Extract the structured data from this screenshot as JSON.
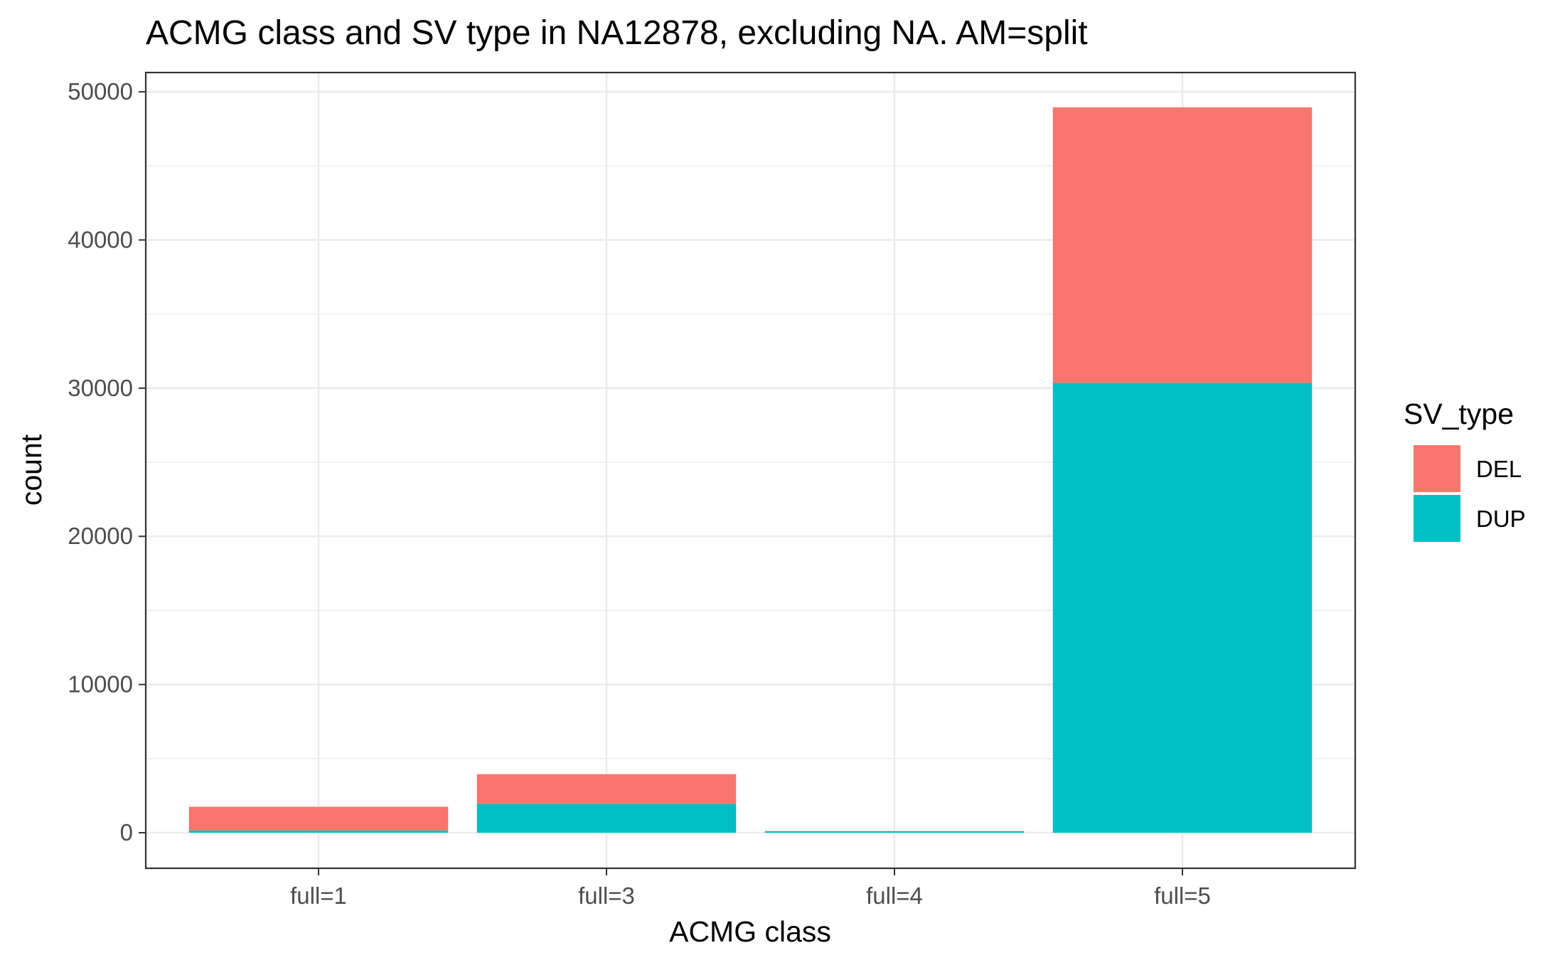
{
  "chart_data": {
    "type": "bar",
    "stacked": true,
    "title": "ACMG class and SV type in NA12878, excluding NA. AM=split",
    "xlabel": "ACMG class",
    "ylabel": "count",
    "categories": [
      "full=1",
      "full=3",
      "full=4",
      "full=5"
    ],
    "series": [
      {
        "name": "DEL",
        "color": "#F8766D",
        "values": [
          1600,
          2000,
          10,
          18600
        ]
      },
      {
        "name": "DUP",
        "color": "#00BFC4",
        "values": [
          150,
          1950,
          100,
          30350
        ]
      }
    ],
    "ylim": [
      -2400,
      51300
    ],
    "yticks": [
      0,
      10000,
      20000,
      30000,
      40000,
      50000
    ],
    "ytick_labels": [
      "0",
      "10000",
      "20000",
      "30000",
      "40000",
      "50000"
    ],
    "grid": true,
    "legend": {
      "title": "SV_type",
      "position": "right"
    }
  }
}
